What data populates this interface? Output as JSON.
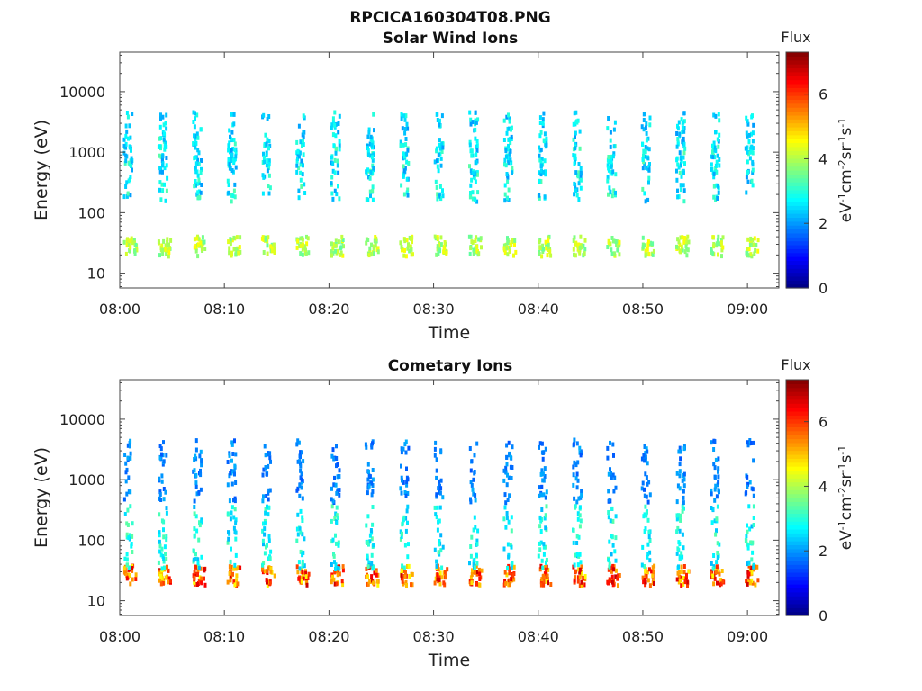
{
  "figure_title": "RPCICA160304T08.PNG",
  "colormap": [
    "#00007f",
    "#0000ff",
    "#0080ff",
    "#00ffff",
    "#80ff80",
    "#ffff00",
    "#ff8000",
    "#ff0000",
    "#7f0000"
  ],
  "chart_data": [
    {
      "type": "heatmap",
      "title": "Solar Wind Ions",
      "xlabel": "Time",
      "ylabel": "Energy (eV)",
      "x_range": [
        "08:00",
        "09:03"
      ],
      "x_ticks": [
        "08:00",
        "08:10",
        "08:20",
        "08:30",
        "08:40",
        "08:50",
        "09:00"
      ],
      "y_scale": "log",
      "ylim": [
        5.7,
        45000
      ],
      "y_ticks": [
        {
          "value": 10,
          "label": "10"
        },
        {
          "value": 100,
          "label": "100"
        },
        {
          "value": 1000,
          "label": "1000"
        },
        {
          "value": 10000,
          "label": "10000"
        }
      ],
      "colorbar": {
        "title": "Flux",
        "unit_label": "eV-1cm-2sr-1s-1",
        "range": [
          0,
          7.3
        ],
        "ticks": [
          0,
          2,
          4,
          6
        ]
      },
      "bands": [
        {
          "center_eV": 30,
          "flux_min": 3.4,
          "flux_max": 4.6,
          "repeat_min": 3.3
        },
        {
          "center_eV": 550,
          "flux_min": 2.0,
          "flux_max": 3.4,
          "repeat_min": 3.3,
          "sparse": true
        },
        {
          "center_eV": 1500,
          "flux_min": 2.0,
          "flux_max": 3.0,
          "repeat_min": 3.3,
          "sparse": true
        }
      ]
    },
    {
      "type": "heatmap",
      "title": "Cometary Ions",
      "xlabel": "Time",
      "ylabel": "Energy (eV)",
      "x_range": [
        "08:00",
        "09:03"
      ],
      "x_ticks": [
        "08:00",
        "08:10",
        "08:20",
        "08:30",
        "08:40",
        "08:50",
        "09:00"
      ],
      "y_scale": "log",
      "ylim": [
        5.7,
        45000
      ],
      "y_ticks": [
        {
          "value": 10,
          "label": "10"
        },
        {
          "value": 100,
          "label": "100"
        },
        {
          "value": 1000,
          "label": "1000"
        },
        {
          "value": 10000,
          "label": "10000"
        }
      ],
      "colorbar": {
        "title": "Flux",
        "unit_label": "eV-1cm-2sr-1s-1",
        "range": [
          0,
          7.3
        ],
        "ticks": [
          0,
          2,
          4,
          6
        ]
      },
      "bands": [
        {
          "center_eV": 28,
          "flux_min": 4.5,
          "flux_max": 6.8,
          "repeat_min": 3.3
        },
        {
          "center_eV": 120,
          "flux_min": 2.2,
          "flux_max": 3.4,
          "repeat_min": 3.3,
          "sparse": true
        },
        {
          "center_eV": 1500,
          "flux_min": 1.5,
          "flux_max": 2.2,
          "repeat_min": 3.3,
          "sparse": true
        }
      ]
    }
  ]
}
